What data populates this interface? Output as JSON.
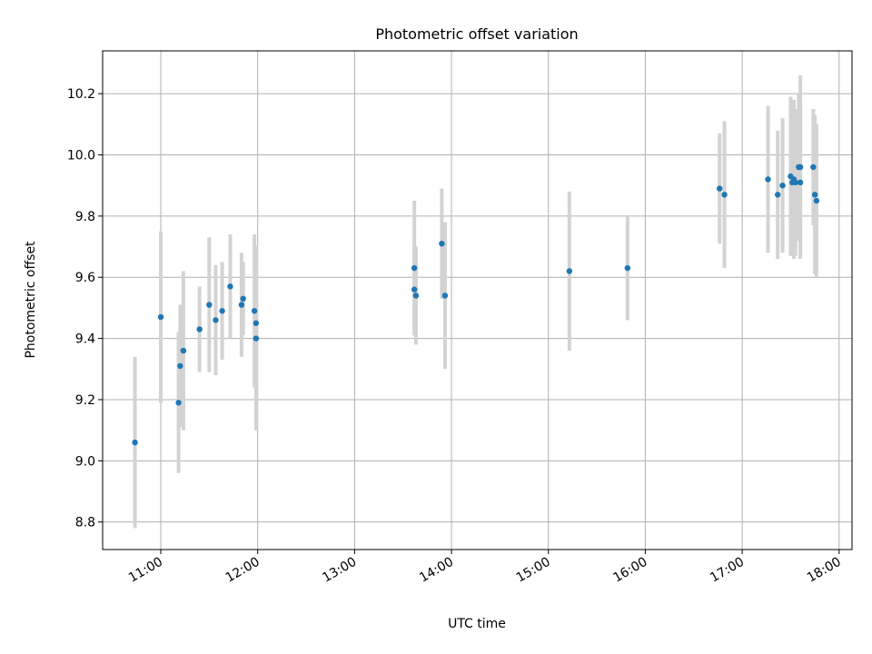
{
  "chart_data": {
    "type": "scatter",
    "title": "Photometric offset variation",
    "xlabel": "UTC time",
    "ylabel": "Photometric offset",
    "x_ticks": [
      "11:00",
      "12:00",
      "13:00",
      "14:00",
      "15:00",
      "16:00",
      "17:00",
      "18:00"
    ],
    "y_ticks": [
      "8.8",
      "9.0",
      "9.2",
      "9.4",
      "9.6",
      "9.8",
      "10.0",
      "10.2"
    ],
    "xlim": [
      "10:24",
      "18:08"
    ],
    "ylim": [
      8.71,
      10.34
    ],
    "grid": true,
    "marker_color": "#1f77b4",
    "errorbar_color": "#d3d3d3",
    "points": [
      {
        "x": "10:44",
        "y": 9.06,
        "err": 0.28
      },
      {
        "x": "11:00",
        "y": 9.47,
        "err": 0.28
      },
      {
        "x": "11:11",
        "y": 9.19,
        "err": 0.23
      },
      {
        "x": "11:12",
        "y": 9.31,
        "err": 0.2
      },
      {
        "x": "11:14",
        "y": 9.36,
        "err": 0.26
      },
      {
        "x": "11:24",
        "y": 9.43,
        "err": 0.14
      },
      {
        "x": "11:30",
        "y": 9.51,
        "err": 0.22
      },
      {
        "x": "11:34",
        "y": 9.46,
        "err": 0.18
      },
      {
        "x": "11:38",
        "y": 9.49,
        "err": 0.16
      },
      {
        "x": "11:43",
        "y": 9.57,
        "err": 0.17
      },
      {
        "x": "11:50",
        "y": 9.51,
        "err": 0.17
      },
      {
        "x": "11:51",
        "y": 9.53,
        "err": 0.12
      },
      {
        "x": "11:58",
        "y": 9.49,
        "err": 0.25
      },
      {
        "x": "11:59",
        "y": 9.45,
        "err": 0.21
      },
      {
        "x": "11:59",
        "y": 9.4,
        "err": 0.3
      },
      {
        "x": "13:37",
        "y": 9.63,
        "err": 0.22
      },
      {
        "x": "13:37",
        "y": 9.56,
        "err": 0.15
      },
      {
        "x": "13:38",
        "y": 9.54,
        "err": 0.16
      },
      {
        "x": "13:54",
        "y": 9.71,
        "err": 0.18
      },
      {
        "x": "13:56",
        "y": 9.54,
        "err": 0.24
      },
      {
        "x": "15:13",
        "y": 9.62,
        "err": 0.26
      },
      {
        "x": "15:49",
        "y": 9.63,
        "err": 0.17
      },
      {
        "x": "16:46",
        "y": 9.89,
        "err": 0.18
      },
      {
        "x": "16:49",
        "y": 9.87,
        "err": 0.24
      },
      {
        "x": "17:16",
        "y": 9.92,
        "err": 0.24
      },
      {
        "x": "17:22",
        "y": 9.87,
        "err": 0.21
      },
      {
        "x": "17:25",
        "y": 9.9,
        "err": 0.22
      },
      {
        "x": "17:30",
        "y": 9.93,
        "err": 0.26
      },
      {
        "x": "17:31",
        "y": 9.91,
        "err": 0.24
      },
      {
        "x": "17:32",
        "y": 9.92,
        "err": 0.26
      },
      {
        "x": "17:33",
        "y": 9.91,
        "err": 0.24
      },
      {
        "x": "17:35",
        "y": 9.96,
        "err": 0.24
      },
      {
        "x": "17:36",
        "y": 9.96,
        "err": 0.3
      },
      {
        "x": "17:36",
        "y": 9.91,
        "err": 0.25
      },
      {
        "x": "17:44",
        "y": 9.96,
        "err": 0.19
      },
      {
        "x": "17:45",
        "y": 9.87,
        "err": 0.26
      },
      {
        "x": "17:46",
        "y": 9.85,
        "err": 0.25
      }
    ]
  }
}
